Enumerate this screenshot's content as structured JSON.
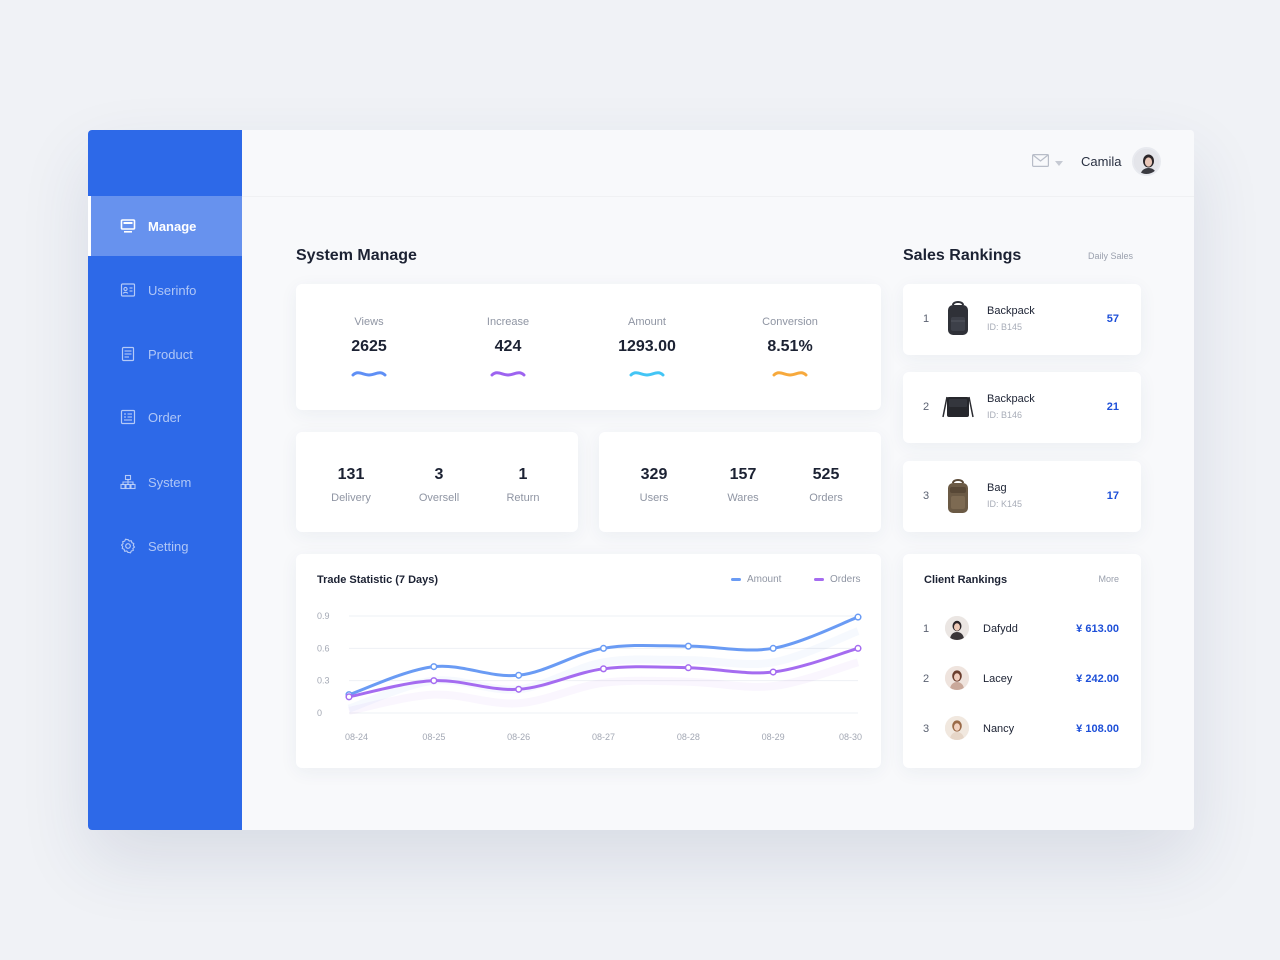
{
  "nav": {
    "items": [
      {
        "label": "Manage",
        "icon": "monitor-icon",
        "active": true
      },
      {
        "label": "Userinfo",
        "icon": "id-card-icon",
        "active": false
      },
      {
        "label": "Product",
        "icon": "document-icon",
        "active": false
      },
      {
        "label": "Order",
        "icon": "list-icon",
        "active": false
      },
      {
        "label": "System",
        "icon": "hierarchy-icon",
        "active": false
      },
      {
        "label": "Setting",
        "icon": "gear-icon",
        "active": false
      }
    ]
  },
  "header": {
    "mail_icon": "mail-icon",
    "user_name": "Camila"
  },
  "system_manage": {
    "title": "System Manage",
    "stats": [
      {
        "label": "Views",
        "value": "2625",
        "color": "#5f8ff5"
      },
      {
        "label": "Increase",
        "value": "424",
        "color": "#9d63f0"
      },
      {
        "label": "Amount",
        "value": "1293.00",
        "color": "#43c5f5"
      },
      {
        "label": "Conversion",
        "value": "8.51%",
        "color": "#f7a93c"
      }
    ],
    "group_a": [
      {
        "value": "131",
        "label": "Delivery"
      },
      {
        "value": "3",
        "label": "Oversell"
      },
      {
        "value": "1",
        "label": "Return"
      }
    ],
    "group_b": [
      {
        "value": "329",
        "label": "Users"
      },
      {
        "value": "157",
        "label": "Wares"
      },
      {
        "value": "525",
        "label": "Orders"
      }
    ]
  },
  "trade": {
    "title": "Trade Statistic (7 Days)"
  },
  "chart_data": {
    "type": "line",
    "title": "Trade Statistic (7 Days)",
    "x": [
      "08-24",
      "08-25",
      "08-26",
      "08-27",
      "08-28",
      "08-29",
      "08-30"
    ],
    "yticks": [
      "0.9",
      "0.6",
      "0.3",
      "0"
    ],
    "ylim": [
      0,
      0.9
    ],
    "grid": true,
    "legend_position": "top-right",
    "series": [
      {
        "name": "Amount",
        "color": "#6a9bf4",
        "values": [
          0.17,
          0.43,
          0.35,
          0.6,
          0.62,
          0.6,
          0.89
        ]
      },
      {
        "name": "Orders",
        "color": "#a56cf0",
        "values": [
          0.15,
          0.3,
          0.22,
          0.41,
          0.42,
          0.38,
          0.6
        ]
      }
    ]
  },
  "sales": {
    "title": "Sales Rankings",
    "filter": "Daily Sales",
    "items": [
      {
        "rank": "1",
        "name": "Backpack",
        "id": "ID: B145",
        "count": "57",
        "icon": "backpack-icon"
      },
      {
        "rank": "2",
        "name": "Backpack",
        "id": "ID: B146",
        "count": "21",
        "icon": "messenger-bag-icon"
      },
      {
        "rank": "3",
        "name": "Bag",
        "id": "ID: K145",
        "count": "17",
        "icon": "bag-icon"
      }
    ]
  },
  "clients": {
    "title": "Client Rankings",
    "more": "More",
    "items": [
      {
        "rank": "1",
        "name": "Dafydd",
        "amount": "¥ 613.00"
      },
      {
        "rank": "2",
        "name": "Lacey",
        "amount": "¥ 242.00"
      },
      {
        "rank": "3",
        "name": "Nancy",
        "amount": "¥ 108.00"
      }
    ]
  }
}
